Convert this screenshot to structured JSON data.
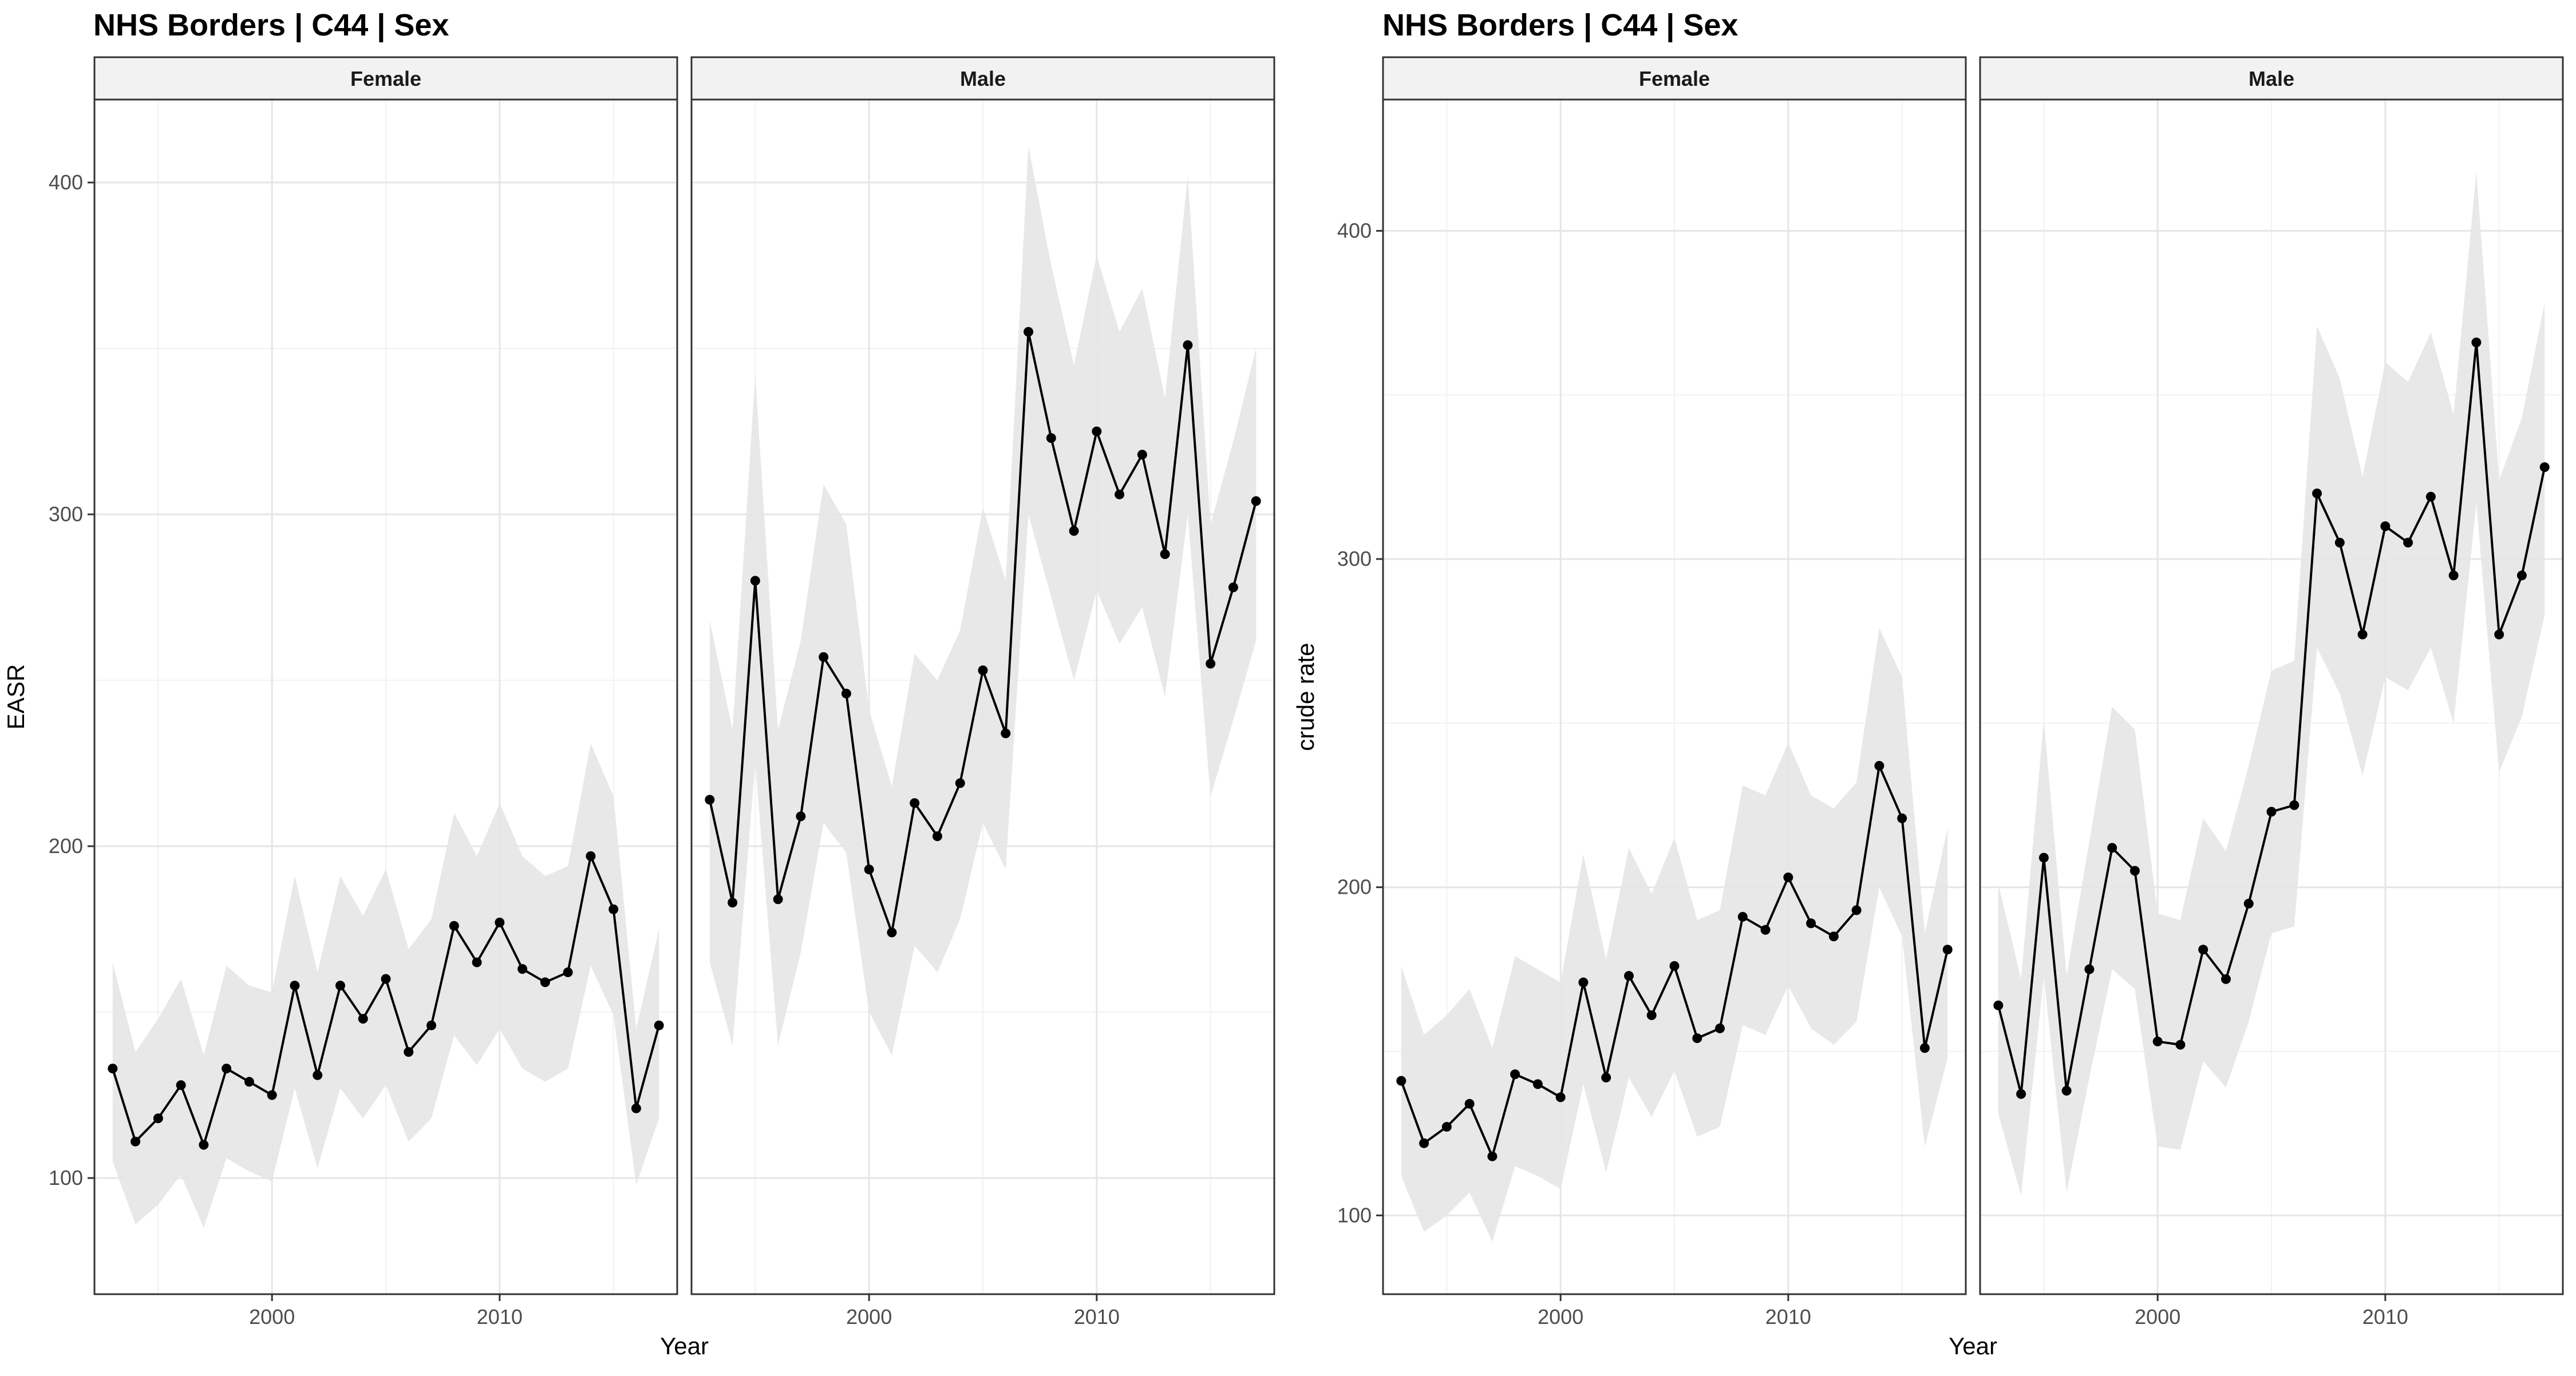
{
  "chart_data": [
    {
      "type": "line",
      "title": "NHS Borders | C44 | Sex",
      "xlabel": "Year",
      "ylabel": "EASR",
      "ylim": [
        65,
        425
      ],
      "xlim": [
        1992.2,
        2017.8
      ],
      "y_ticks": [
        100,
        200,
        300,
        400
      ],
      "x_ticks": [
        2000,
        2010
      ],
      "grid": true,
      "facets": [
        {
          "label": "Female",
          "x": [
            1993,
            1994,
            1995,
            1996,
            1997,
            1998,
            1999,
            2000,
            2001,
            2002,
            2003,
            2004,
            2005,
            2006,
            2007,
            2008,
            2009,
            2010,
            2011,
            2012,
            2013,
            2014,
            2015,
            2016,
            2017
          ],
          "values": [
            133,
            111,
            118,
            128,
            110,
            133,
            129,
            125,
            158,
            131,
            158,
            148,
            160,
            138,
            146,
            176,
            165,
            177,
            163,
            159,
            162,
            197,
            181,
            121,
            146
          ],
          "lower": [
            105,
            86,
            92,
            101,
            85,
            106,
            102,
            99,
            127,
            103,
            127,
            118,
            128,
            111,
            118,
            143,
            134,
            145,
            133,
            129,
            133,
            164,
            149,
            98,
            118
          ],
          "upper": [
            165,
            138,
            148,
            160,
            137,
            164,
            158,
            156,
            191,
            162,
            191,
            179,
            193,
            169,
            178,
            210,
            197,
            213,
            197,
            191,
            194,
            231,
            215,
            145,
            175
          ]
        },
        {
          "label": "Male",
          "x": [
            1993,
            1994,
            1995,
            1996,
            1997,
            1998,
            1999,
            2000,
            2001,
            2002,
            2003,
            2004,
            2005,
            2006,
            2007,
            2008,
            2009,
            2010,
            2011,
            2012,
            2013,
            2014,
            2015,
            2016,
            2017
          ],
          "values": [
            214,
            183,
            280,
            184,
            209,
            257,
            246,
            193,
            174,
            213,
            203,
            219,
            253,
            234,
            355,
            323,
            295,
            325,
            306,
            318,
            288,
            351,
            255,
            278,
            304
          ],
          "lower": [
            165,
            140,
            225,
            140,
            168,
            207,
            198,
            150,
            137,
            170,
            162,
            178,
            207,
            193,
            300,
            275,
            250,
            277,
            261,
            272,
            245,
            300,
            215,
            238,
            262
          ],
          "upper": [
            268,
            235,
            342,
            235,
            262,
            309,
            297,
            241,
            218,
            258,
            250,
            265,
            302,
            280,
            411,
            375,
            345,
            378,
            355,
            368,
            335,
            402,
            297,
            322,
            350
          ]
        }
      ]
    },
    {
      "type": "line",
      "title": "NHS Borders | C44 | Sex",
      "xlabel": "Year",
      "ylabel": "crude rate",
      "ylim": [
        76,
        440
      ],
      "xlim": [
        1992.2,
        2017.8
      ],
      "y_ticks": [
        100,
        200,
        300,
        400
      ],
      "x_ticks": [
        2000,
        2010
      ],
      "grid": true,
      "facets": [
        {
          "label": "Female",
          "x": [
            1993,
            1994,
            1995,
            1996,
            1997,
            1998,
            1999,
            2000,
            2001,
            2002,
            2003,
            2004,
            2005,
            2006,
            2007,
            2008,
            2009,
            2010,
            2011,
            2012,
            2013,
            2014,
            2015,
            2016,
            2017
          ],
          "values": [
            141,
            122,
            127,
            134,
            118,
            143,
            140,
            136,
            171,
            142,
            173,
            161,
            176,
            154,
            157,
            191,
            187,
            203,
            189,
            185,
            193,
            237,
            221,
            151,
            181
          ],
          "lower": [
            112,
            95,
            100,
            107,
            92,
            115,
            112,
            108,
            140,
            113,
            142,
            130,
            144,
            124,
            127,
            158,
            155,
            170,
            157,
            152,
            159,
            200,
            185,
            121,
            148
          ],
          "upper": [
            176,
            155,
            161,
            169,
            151,
            179,
            175,
            171,
            210,
            178,
            212,
            198,
            215,
            190,
            193,
            231,
            228,
            244,
            228,
            224,
            232,
            279,
            264,
            186,
            218
          ]
        },
        {
          "label": "Male",
          "x": [
            1993,
            1994,
            1995,
            1996,
            1997,
            1998,
            1999,
            2000,
            2001,
            2002,
            2003,
            2004,
            2005,
            2006,
            2007,
            2008,
            2009,
            2010,
            2011,
            2012,
            2013,
            2014,
            2015,
            2016,
            2017
          ],
          "values": [
            164,
            137,
            209,
            138,
            175,
            212,
            205,
            153,
            152,
            181,
            172,
            195,
            223,
            225,
            320,
            305,
            277,
            310,
            305,
            319,
            295,
            366,
            277,
            295,
            328
          ],
          "lower": [
            131,
            106,
            173,
            107,
            142,
            175,
            169,
            121,
            120,
            147,
            139,
            159,
            186,
            188,
            273,
            259,
            234,
            264,
            260,
            273,
            250,
            317,
            235,
            252,
            283
          ],
          "upper": [
            201,
            172,
            251,
            173,
            214,
            255,
            248,
            192,
            190,
            221,
            211,
            237,
            266,
            269,
            371,
            355,
            325,
            360,
            354,
            369,
            344,
            418,
            324,
            343,
            378
          ]
        }
      ]
    }
  ]
}
